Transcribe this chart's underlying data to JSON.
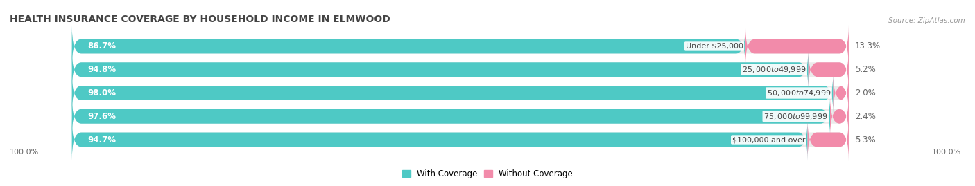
{
  "title": "HEALTH INSURANCE COVERAGE BY HOUSEHOLD INCOME IN ELMWOOD",
  "source": "Source: ZipAtlas.com",
  "categories": [
    "Under $25,000",
    "$25,000 to $49,999",
    "$50,000 to $74,999",
    "$75,000 to $99,999",
    "$100,000 and over"
  ],
  "with_coverage": [
    86.7,
    94.8,
    98.0,
    97.6,
    94.7
  ],
  "without_coverage": [
    13.3,
    5.2,
    2.0,
    2.4,
    5.3
  ],
  "with_coverage_color": "#4EC9C5",
  "without_coverage_color": "#F28BAA",
  "bar_background": "#EBEBEB",
  "bg_color": "#FFFFFF",
  "title_fontsize": 10,
  "label_fontsize": 8.5,
  "legend_fontsize": 8.5,
  "source_fontsize": 7.5,
  "bar_height": 0.62,
  "total_width": 100.0,
  "xlim_left": -8.0,
  "xlim_right": 115.0
}
